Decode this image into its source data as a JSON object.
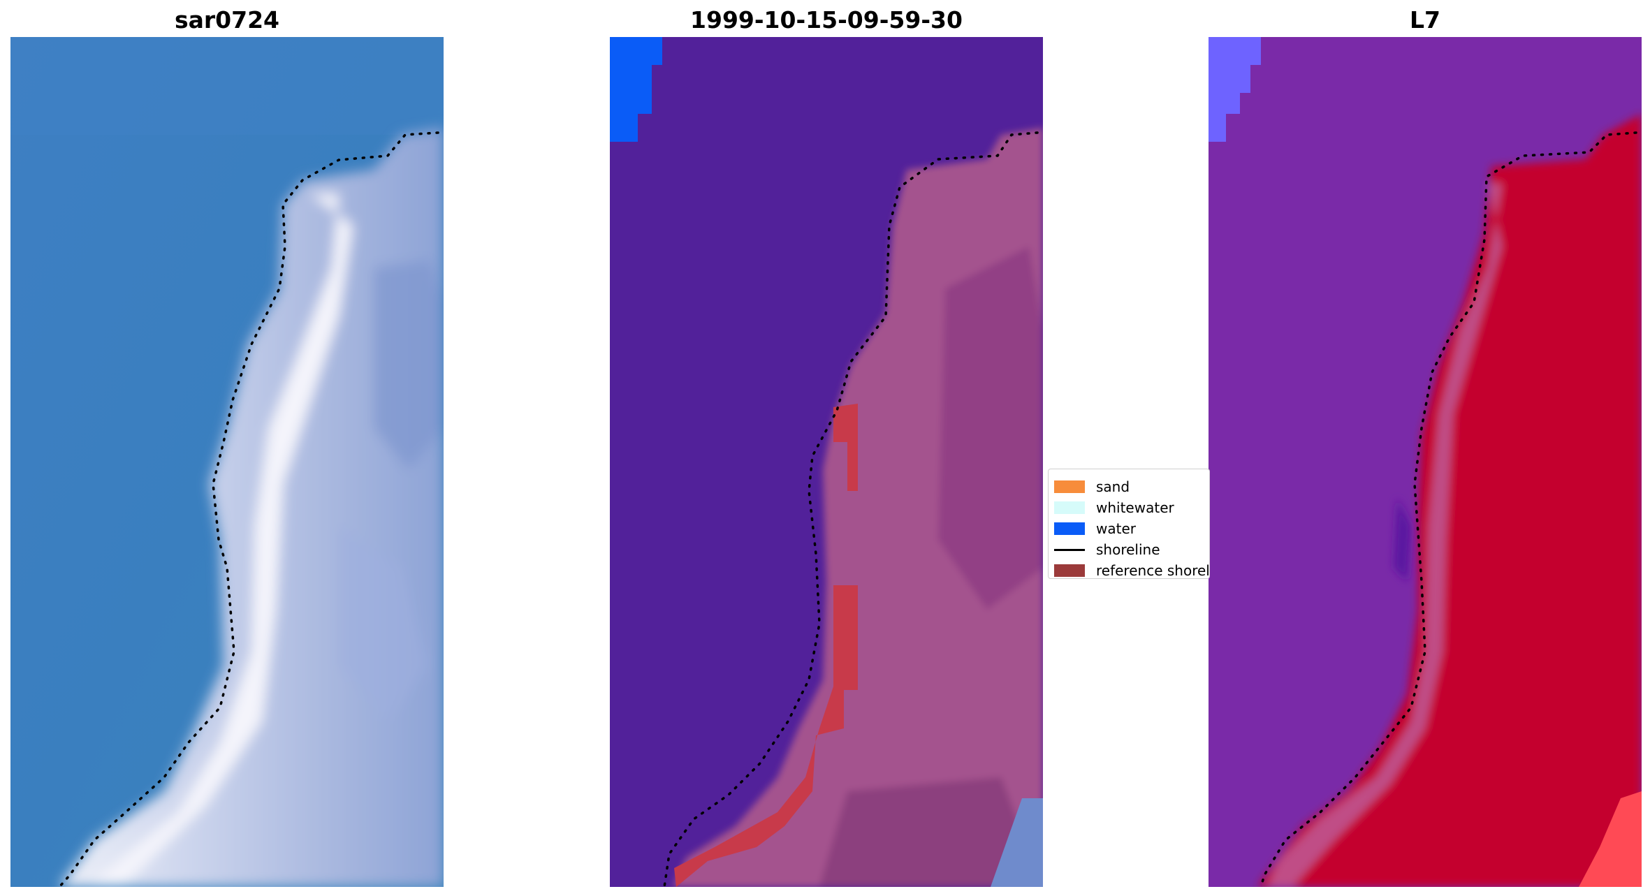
{
  "panels": [
    {
      "title": "sar0724"
    },
    {
      "title": "1999-10-15-09-59-30"
    },
    {
      "title": "L7"
    }
  ],
  "legend": {
    "items": [
      {
        "label": "sand",
        "color": "#f78c3b",
        "kind": "patch"
      },
      {
        "label": "whitewater",
        "color": "#d6fbfa",
        "kind": "patch"
      },
      {
        "label": "water",
        "color": "#0a5cf7",
        "kind": "patch"
      },
      {
        "label": "shoreline",
        "color": "#000000",
        "kind": "line"
      },
      {
        "label": "reference shoreline",
        "color": "#9b3a3a",
        "kind": "patch"
      }
    ]
  },
  "colors": {
    "rgb_water": "#3a7fc0",
    "rgb_land": "#cdd6ee",
    "class_water": "#52219a",
    "class_land": "#a4538e",
    "class_reference": "#c83a4a",
    "class_water_blue": "#0a5cf7",
    "ndwi_water": "#7a2aa8",
    "ndwi_land": "#c4002f"
  }
}
